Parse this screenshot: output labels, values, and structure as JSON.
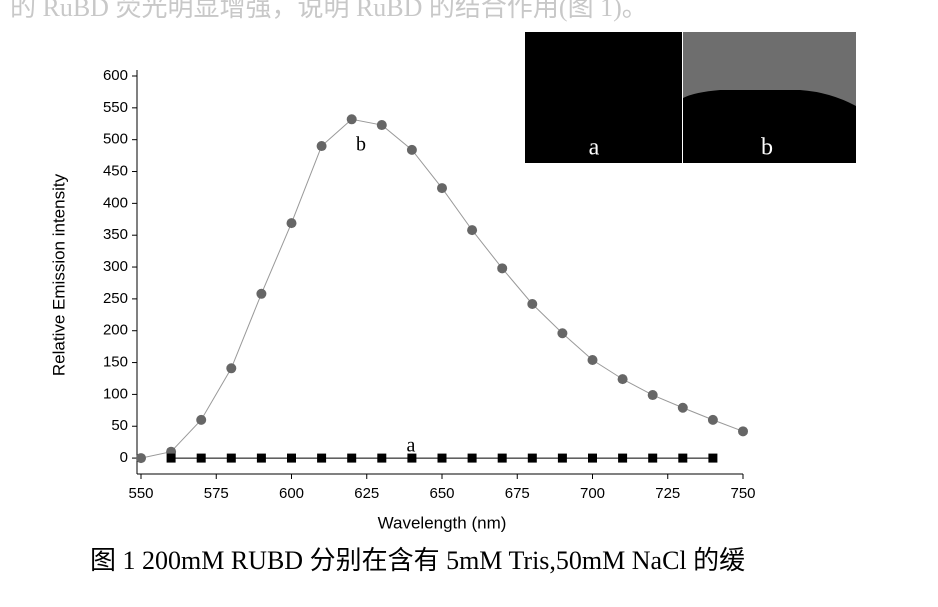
{
  "header_text": "的 RuBD 荧光明显增强，说明 RuBD 的结合作用(图 1)。",
  "chart_data": {
    "type": "line",
    "xlabel": "Wavelength (nm)",
    "ylabel": "Relative Emission intensity",
    "xlim": [
      550,
      750
    ],
    "xticks": [
      550,
      575,
      600,
      625,
      650,
      675,
      700,
      725,
      750
    ],
    "ylim": [
      -25,
      600
    ],
    "yticks": [
      0,
      50,
      100,
      150,
      200,
      250,
      300,
      350,
      400,
      450,
      500,
      550,
      600
    ],
    "series": [
      {
        "name": "b",
        "color": "#666666",
        "marker": "circle",
        "x": [
          550,
          560,
          570,
          580,
          590,
          600,
          610,
          620,
          630,
          640,
          650,
          660,
          670,
          680,
          690,
          700,
          710,
          720,
          730,
          740,
          750
        ],
        "values": [
          0,
          10,
          60,
          141,
          258,
          369,
          490,
          532,
          523,
          484,
          424,
          358,
          298,
          242,
          196,
          154,
          124,
          99,
          79,
          60,
          42
        ]
      },
      {
        "name": "a",
        "color": "#000000",
        "marker": "square",
        "x": [
          560,
          570,
          580,
          590,
          600,
          610,
          620,
          630,
          640,
          650,
          660,
          670,
          680,
          690,
          700,
          710,
          720,
          730,
          740
        ],
        "values": [
          0,
          0,
          0,
          0,
          0,
          0,
          0,
          0,
          0,
          0,
          0,
          0,
          0,
          0,
          0,
          0,
          0,
          0,
          0
        ]
      }
    ],
    "inset_labels": [
      "a",
      "b"
    ]
  },
  "caption": "图 1 200mM RUBD 分别在含有 5mM Tris,50mM NaCl 的缓"
}
